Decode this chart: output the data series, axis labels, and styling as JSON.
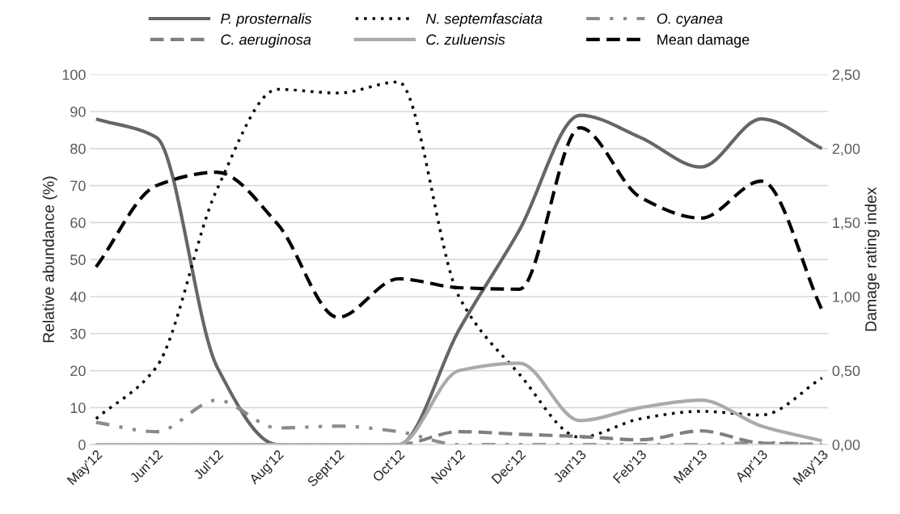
{
  "chart_data": {
    "type": "line",
    "categories": [
      "May'12",
      "Jun'12",
      "Jul'12",
      "Aug'12",
      "Sept'12",
      "Oct'12",
      "Nov'12",
      "Dec'12",
      "Jan'13",
      "Feb'13",
      "Mar'13",
      "Apr'13",
      "May'13"
    ],
    "series": [
      {
        "name": "P. prosternalis",
        "color": "#666666",
        "line_style": "solid",
        "values": [
          88,
          83,
          21,
          0,
          0,
          0,
          31,
          58,
          89,
          83,
          75,
          88,
          80
        ]
      },
      {
        "name": "N. septemfasciata",
        "color": "#000000",
        "line_style": "dotted",
        "values": [
          7,
          21,
          69,
          96,
          95,
          98,
          40,
          19,
          2,
          7,
          9,
          8,
          18
        ]
      },
      {
        "name": "O. cyanea",
        "color": "#8c8c8c",
        "line_style": "dashdot",
        "values": [
          6,
          3.5,
          12,
          4.5,
          5,
          3.5,
          0,
          0,
          0,
          0,
          0,
          0.5,
          0
        ]
      },
      {
        "name": "C. aeruginosa",
        "color": "#7f7f7f",
        "line_style": "dashed",
        "values": [
          0,
          0,
          0,
          0,
          0,
          0,
          3.5,
          2.8,
          2.2,
          1.3,
          3.7,
          0.4,
          0
        ]
      },
      {
        "name": "C. zuluensis",
        "color": "#aaaaaa",
        "line_style": "solid",
        "values": [
          0,
          0,
          0,
          0,
          0,
          0,
          20,
          22,
          6.5,
          10,
          12,
          5,
          1
        ]
      },
      {
        "name": "Mean damage",
        "color": "#000000",
        "line_style": "dashed",
        "axis": "y2",
        "values": [
          1.2,
          1.75,
          1.84,
          1.49,
          0.86,
          1.12,
          1.06,
          1.05,
          2.14,
          1.67,
          1.53,
          1.78,
          0.91
        ]
      }
    ],
    "ylabel": "Relative abundance (%)",
    "y2label": "Damage rating index",
    "ylim": [
      0,
      100
    ],
    "yticks": [
      0,
      10,
      20,
      30,
      40,
      50,
      60,
      70,
      80,
      90,
      100
    ],
    "y2lim": [
      0,
      2.5
    ],
    "y2ticks": [
      {
        "value": 0,
        "label": "0,00"
      },
      {
        "value": 0.5,
        "label": "0,50"
      },
      {
        "value": 1,
        "label": "1,00"
      },
      {
        "value": 1.5,
        "label": "1,50"
      },
      {
        "value": 2,
        "label": "2,00"
      },
      {
        "value": 2.5,
        "label": "2,50"
      }
    ],
    "grid": "y",
    "legend": "top",
    "marker": "none"
  }
}
